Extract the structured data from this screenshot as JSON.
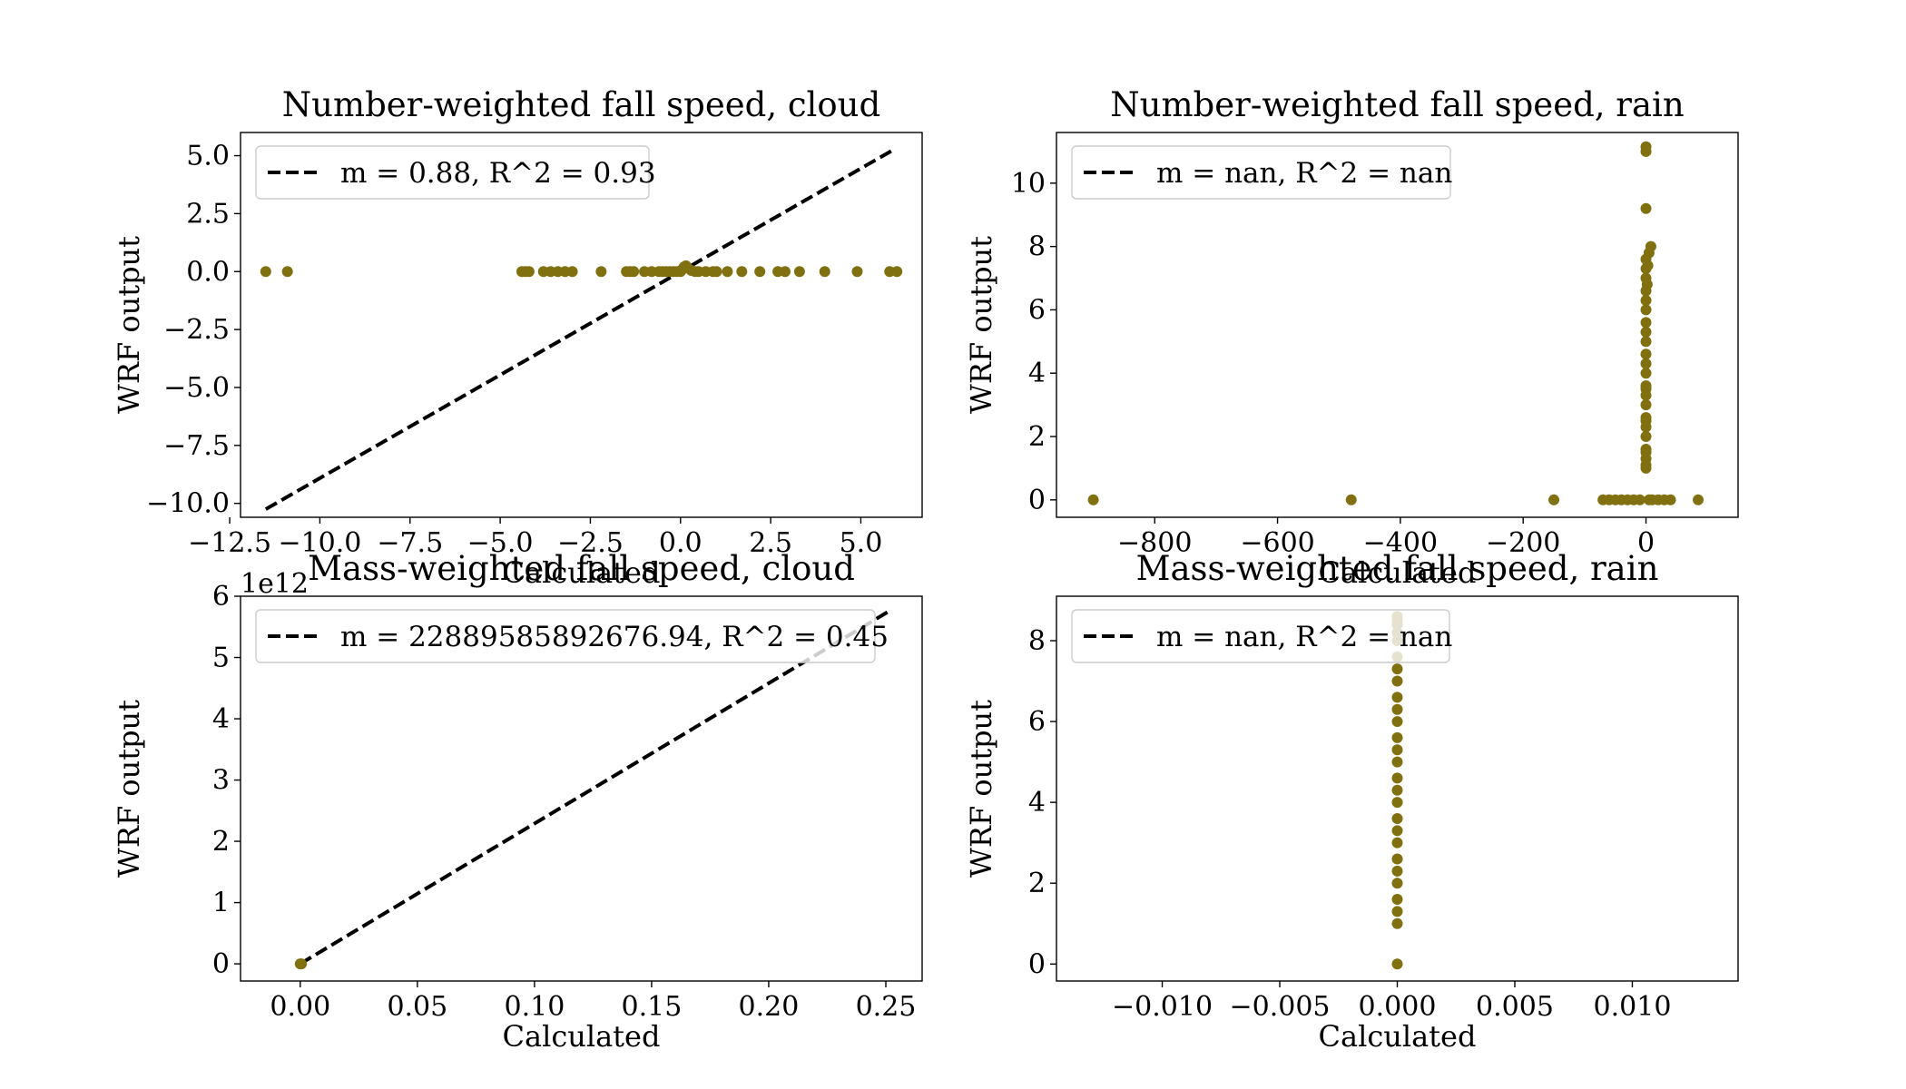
{
  "marker_color": "#81700f",
  "fit_line_color": "#000000",
  "chart_data": [
    {
      "type": "scatter",
      "title": "Number-weighted fall speed, cloud",
      "xlabel": "Calculated",
      "ylabel": "WRF output",
      "xlim": [
        -12.2,
        6.7
      ],
      "ylim": [
        -10.6,
        6.0
      ],
      "xticks": [
        -12.5,
        -10.0,
        -7.5,
        -5.0,
        -2.5,
        0.0,
        2.5,
        5.0
      ],
      "xtick_labels": [
        "−12.5",
        "−10.0",
        "−7.5",
        "−5.0",
        "−2.5",
        "0.0",
        "2.5",
        "5.0"
      ],
      "yticks": [
        -10.0,
        -7.5,
        -5.0,
        -2.5,
        0.0,
        2.5,
        5.0
      ],
      "ytick_labels": [
        "−10.0",
        "−7.5",
        "−5.0",
        "−2.5",
        "0.0",
        "2.5",
        "5.0"
      ],
      "offset_label": "",
      "legend": {
        "label": "m = 0.88, R^2 = 0.93",
        "position": "upper-left"
      },
      "fit_line": {
        "x": [
          -11.5,
          5.9
        ],
        "y": [
          -10.25,
          5.25
        ]
      },
      "points": {
        "x": [
          -11.5,
          -10.9,
          -4.4,
          -4.3,
          -4.2,
          -3.8,
          -3.6,
          -3.4,
          -3.2,
          -3.0,
          -2.2,
          -1.5,
          -1.4,
          -1.3,
          -1.0,
          -0.8,
          -0.6,
          -0.5,
          -0.4,
          -0.3,
          -0.2,
          -0.1,
          0.0,
          0.05,
          0.1,
          0.15,
          0.2,
          0.3,
          0.4,
          0.5,
          0.7,
          0.9,
          1.0,
          1.3,
          1.7,
          2.2,
          2.7,
          2.9,
          3.3,
          4.0,
          4.9,
          5.8,
          6.0
        ],
        "y": [
          0,
          0,
          0,
          0,
          0,
          0,
          0,
          0,
          0,
          0,
          0,
          0,
          0,
          0,
          0,
          0,
          0,
          0,
          0,
          0,
          0,
          0,
          0,
          0.1,
          0.2,
          0.25,
          0.15,
          0.05,
          0,
          0,
          0,
          0,
          0,
          0,
          0,
          0,
          0,
          0,
          0,
          0,
          0,
          0,
          0
        ]
      }
    },
    {
      "type": "scatter",
      "title": "Number-weighted fall speed, rain",
      "xlabel": "Calculated",
      "ylabel": "WRF output",
      "xlim": [
        -960,
        150
      ],
      "ylim": [
        -0.55,
        11.6
      ],
      "xticks": [
        -800,
        -600,
        -400,
        -200,
        0
      ],
      "xtick_labels": [
        "−800",
        "−600",
        "−400",
        "−200",
        "0"
      ],
      "yticks": [
        0,
        2,
        4,
        6,
        8,
        10
      ],
      "ytick_labels": [
        "0",
        "2",
        "4",
        "6",
        "8",
        "10"
      ],
      "offset_label": "",
      "legend": {
        "label": "m = nan, R^2 = nan",
        "position": "upper-left"
      },
      "fit_line": null,
      "points": {
        "x": [
          -900,
          -480,
          -150,
          -70,
          -60,
          -50,
          -40,
          -30,
          -20,
          -10,
          5,
          10,
          20,
          30,
          40,
          85,
          0,
          0,
          0,
          0,
          0,
          0,
          0,
          0,
          0,
          0,
          0,
          0,
          0,
          0,
          0,
          0,
          0,
          0,
          0,
          0,
          0,
          0,
          0,
          0,
          0,
          0,
          0,
          0,
          5,
          8,
          2,
          3
        ],
        "y": [
          0,
          0,
          0,
          0,
          0,
          0,
          0,
          0,
          0,
          0,
          0,
          0,
          0,
          0,
          0,
          0,
          1.0,
          1.3,
          1.6,
          2.0,
          2.3,
          2.6,
          3.0,
          3.3,
          3.6,
          4.0,
          4.3,
          4.6,
          5.0,
          5.3,
          5.6,
          6.0,
          6.3,
          6.6,
          7.0,
          7.3,
          7.6,
          9.2,
          11.0,
          11.15,
          1.1,
          1.5,
          2.5,
          3.5,
          7.8,
          8.0,
          6.8,
          7.4
        ]
      }
    },
    {
      "type": "scatter",
      "title": "Mass-weighted fall speed, cloud",
      "xlabel": "Calculated",
      "ylabel": "WRF output",
      "xlim": [
        -0.0255,
        0.2655
      ],
      "ylim": [
        -0.28,
        6.0
      ],
      "xticks": [
        0.0,
        0.05,
        0.1,
        0.15,
        0.2,
        0.25
      ],
      "xtick_labels": [
        "0.00",
        "0.05",
        "0.10",
        "0.15",
        "0.20",
        "0.25"
      ],
      "yticks": [
        0,
        1,
        2,
        3,
        4,
        5,
        6
      ],
      "ytick_labels": [
        "0",
        "1",
        "2",
        "3",
        "4",
        "5",
        "6"
      ],
      "offset_label": "1e12",
      "legend": {
        "label": "m = 22889585892676.94, R^2 = 0.45",
        "position": "upper-left"
      },
      "fit_line": {
        "x": [
          0.0,
          0.252
        ],
        "y": [
          0.0,
          5.77
        ]
      },
      "points": {
        "x": [
          0.0,
          0.0005
        ],
        "y": [
          0.0,
          0.0
        ]
      }
    },
    {
      "type": "scatter",
      "title": "Mass-weighted fall speed, rain",
      "xlabel": "Calculated",
      "ylabel": "WRF output",
      "xlim": [
        -0.0145,
        0.0145
      ],
      "ylim": [
        -0.42,
        9.1
      ],
      "xticks": [
        -0.01,
        -0.005,
        0.0,
        0.005,
        0.01
      ],
      "xtick_labels": [
        "−0.010",
        "−0.005",
        "0.000",
        "0.005",
        "0.010"
      ],
      "yticks": [
        0,
        2,
        4,
        6,
        8
      ],
      "ytick_labels": [
        "0",
        "2",
        "4",
        "6",
        "8"
      ],
      "offset_label": "",
      "legend": {
        "label": "m = nan, R^2 = nan",
        "position": "upper-left"
      },
      "fit_line": null,
      "points": {
        "x": [
          0,
          0,
          0,
          0,
          0,
          0,
          0,
          0,
          0,
          0,
          0,
          0,
          0,
          0,
          0,
          0,
          0,
          0,
          0,
          0,
          0,
          0,
          0,
          0,
          0,
          0,
          0
        ],
        "y": [
          0.0,
          1.0,
          1.3,
          1.6,
          2.0,
          2.3,
          2.6,
          3.0,
          3.3,
          3.6,
          4.0,
          4.3,
          4.6,
          5.0,
          5.3,
          5.6,
          6.0,
          6.3,
          6.6,
          7.0,
          7.3,
          7.6,
          8.0,
          8.2,
          8.4,
          8.5,
          8.6
        ]
      }
    }
  ]
}
